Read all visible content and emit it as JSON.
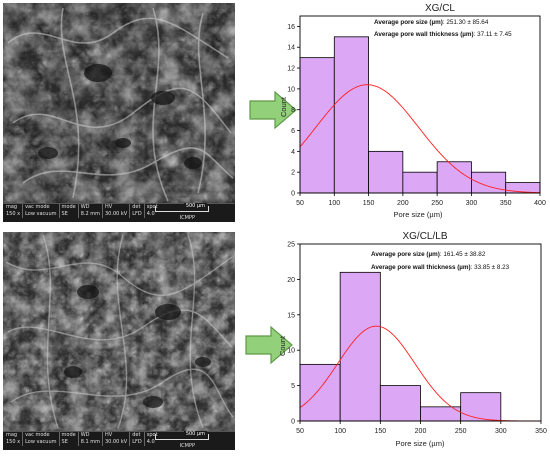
{
  "sem_images": [
    {
      "info": {
        "row1": [
          "mag",
          "vac mode",
          "mode",
          "WD",
          "HV",
          "det",
          "spot"
        ],
        "row2": [
          "150 x",
          "Low vacuum",
          "SE",
          "8.2 mm",
          "30.00 kV",
          "LFD",
          "4.0"
        ]
      },
      "scale_label": "500 µm",
      "institution": "ICMPP"
    },
    {
      "info": {
        "row1": [
          "mag",
          "vac mode",
          "mode",
          "WD",
          "HV",
          "det",
          "spot"
        ],
        "row2": [
          "150 x",
          "Low vacuum",
          "SE",
          "8.1 mm",
          "30.00 kV",
          "LFD",
          "4.0"
        ]
      },
      "scale_label": "500 µm",
      "institution": "ICMPP"
    }
  ],
  "colors": {
    "bar_fill": "#dca8f5",
    "bar_stroke": "#000000",
    "fit_line": "#ff2020",
    "arrow_fill": "#92d07a",
    "arrow_stroke": "#5f9a48"
  },
  "chart_data": [
    {
      "type": "bar",
      "title": "XG/CL",
      "annotations": [
        {
          "label": "Average pore size (µm)",
          "value": ": 251.30 ± 85.64"
        },
        {
          "label": "Average pore wall thickness (µm)",
          "value": ": 37.11 ± 7.45"
        }
      ],
      "xlabel": "Pore size (µm)",
      "ylabel": "Count",
      "xlim": [
        50,
        400
      ],
      "ylim": [
        0,
        17
      ],
      "xticks": [
        50,
        100,
        150,
        200,
        250,
        300,
        350,
        400
      ],
      "yticks": [
        0,
        2,
        4,
        6,
        8,
        10,
        12,
        14,
        16
      ],
      "bins": [
        [
          50,
          100
        ],
        [
          100,
          150
        ],
        [
          150,
          200
        ],
        [
          200,
          250
        ],
        [
          250,
          300
        ],
        [
          300,
          350
        ],
        [
          350,
          400
        ]
      ],
      "values": [
        13,
        15,
        4,
        2,
        3,
        2,
        1
      ],
      "fit": {
        "type": "normal",
        "mean": 148,
        "sd": 75,
        "peak": 10.4
      }
    },
    {
      "type": "bar",
      "title": "XG/CL/LB",
      "annotations": [
        {
          "label": "Average pore size (µm)",
          "value": ": 161.45 ± 38.82"
        },
        {
          "label": "Average pore wall thickness (µm)",
          "value": ": 33.85 ± 8.23"
        }
      ],
      "xlabel": "Pore size (µm)",
      "ylabel": "Count",
      "xlim": [
        50,
        350
      ],
      "ylim": [
        0,
        25
      ],
      "xticks": [
        50,
        100,
        150,
        200,
        250,
        300,
        350
      ],
      "yticks": [
        0,
        5,
        10,
        15,
        20,
        25
      ],
      "bins": [
        [
          50,
          100
        ],
        [
          100,
          150
        ],
        [
          150,
          200
        ],
        [
          200,
          250
        ],
        [
          250,
          300
        ]
      ],
      "values": [
        8,
        21,
        5,
        2,
        4
      ],
      "fit": {
        "type": "normal",
        "mean": 145,
        "sd": 48,
        "peak": 13.4
      }
    }
  ]
}
